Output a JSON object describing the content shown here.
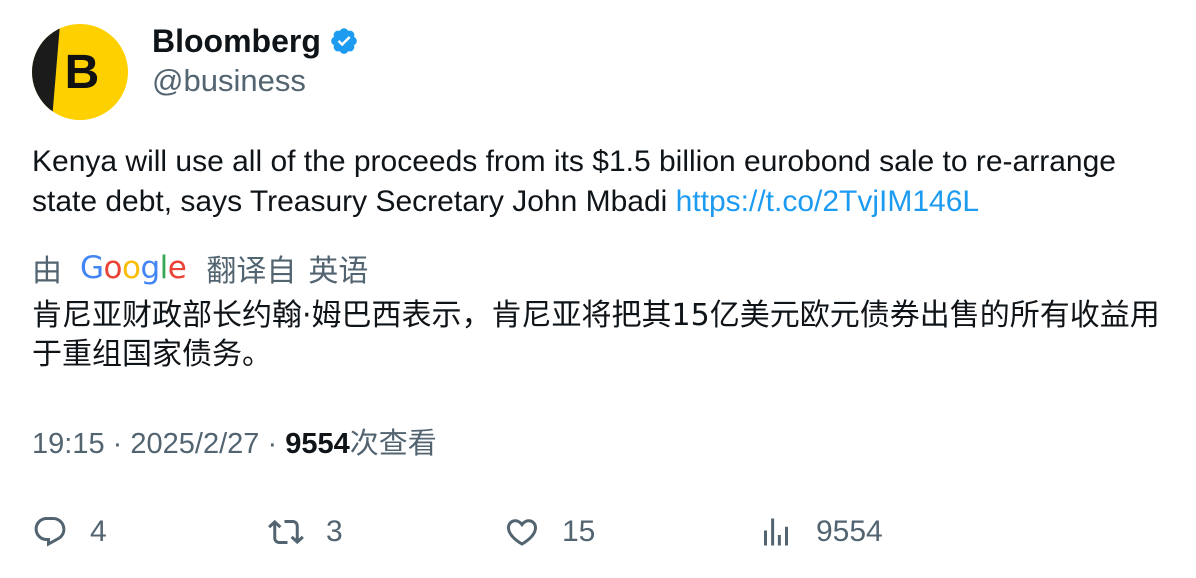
{
  "author": {
    "display_name": "Bloomberg",
    "handle": "@business",
    "avatar_letter": "B",
    "verified": true,
    "avatar_colors": {
      "yellow": "#ffd000",
      "dark": "#1b1b1b"
    }
  },
  "tweet": {
    "text": "Kenya will use all of the proceeds from its $1.5 billion eurobond sale to re-arrange state debt, says Treasury Secretary John Mbadi ",
    "link": "https://t.co/2TvjIM146L"
  },
  "translation": {
    "by_label": "由",
    "provider": "Google",
    "from_label": "翻译自",
    "language": "英语",
    "text": "肯尼亚财政部长约翰·姆巴西表示，肯尼亚将把其15亿美元欧元债券出售的所有收益用于重组国家债务。"
  },
  "meta": {
    "time": "19:15",
    "separator": "·",
    "date": "2025/2/27",
    "views_count": "9554",
    "views_label": "次查看"
  },
  "actions": {
    "reply_count": "4",
    "retweet_count": "3",
    "like_count": "15",
    "views_count": "9554"
  },
  "colors": {
    "text": "#0f1419",
    "secondary": "#536471",
    "link": "#1d9bf0",
    "verified": "#1d9bf0",
    "google_blue": "#4285f4",
    "google_red": "#ea4335",
    "google_yellow": "#fbbc05",
    "google_green": "#34a853"
  },
  "icons": [
    "verified-badge-icon",
    "reply-icon",
    "retweet-icon",
    "like-icon",
    "analytics-icon"
  ]
}
